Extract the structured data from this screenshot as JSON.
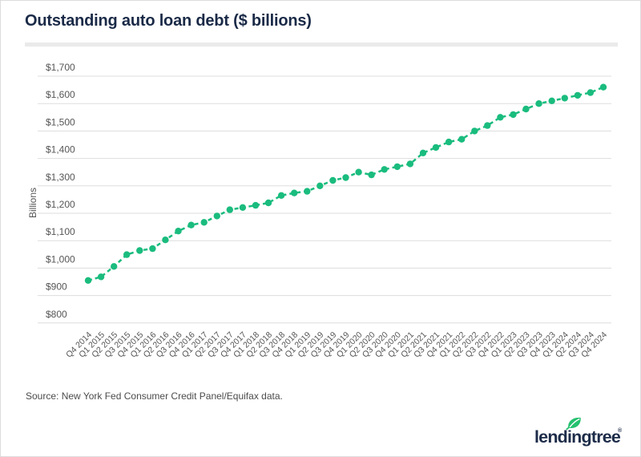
{
  "page": {
    "title": "Outstanding auto loan debt ($ billions)",
    "source": "Source: New York Fed Consumer Credit Panel/Equifax data."
  },
  "logo": {
    "text": "lendingtree",
    "reg": "®",
    "leaf_icon": "leaf-icon"
  },
  "colors": {
    "series_green": "#1abc7e",
    "leaf_green": "#25c06f",
    "brand_navy": "#1d2c49",
    "grid_gray": "#dddddd",
    "axis_text_gray": "#565656"
  },
  "chart_data": {
    "type": "line",
    "title": "Outstanding auto loan debt ($ billions)",
    "xlabel": "",
    "ylabel": "Billions",
    "ylim": [
      800,
      1700
    ],
    "ytick_values": [
      1700,
      1600,
      1500,
      1400,
      1300,
      1200,
      1100,
      1000,
      900,
      800
    ],
    "ytick_labels": [
      "$1,700",
      "$1,600",
      "$1,500",
      "$1,400",
      "$1,300",
      "$1,200",
      "$1,100",
      "$1,000",
      "$900",
      "$800"
    ],
    "grid": "horizontal-only",
    "legend": "none",
    "line_style": "dashed-with-round-markers",
    "categories": [
      "Q4 2014",
      "Q1 2015",
      "Q2 2015",
      "Q3 2015",
      "Q4 2015",
      "Q1 2016",
      "Q2 2016",
      "Q3 2016",
      "Q4 2016",
      "Q1 2017",
      "Q2 2017",
      "Q3 2017",
      "Q4 2017",
      "Q1 2018",
      "Q2 2018",
      "Q3 2018",
      "Q4 2018",
      "Q1 2019",
      "Q2 2019",
      "Q3 2019",
      "Q4 2019",
      "Q1 2020",
      "Q2 2020",
      "Q3 2020",
      "Q4 2020",
      "Q1 2021",
      "Q2 2021",
      "Q3 2021",
      "Q4 2021",
      "Q1 2022",
      "Q2 2022",
      "Q3 2022",
      "Q4 2022",
      "Q1 2023",
      "Q2 2023",
      "Q3 2023",
      "Q4 2023",
      "Q1 2024",
      "Q2 2024",
      "Q3 2024",
      "Q4 2024"
    ],
    "values": [
      955,
      968,
      1006,
      1049,
      1064,
      1071,
      1103,
      1135,
      1157,
      1167,
      1190,
      1213,
      1221,
      1229,
      1238,
      1265,
      1274,
      1280,
      1300,
      1320,
      1330,
      1350,
      1340,
      1360,
      1370,
      1380,
      1420,
      1440,
      1460,
      1470,
      1500,
      1520,
      1550,
      1560,
      1580,
      1600,
      1610,
      1620,
      1630,
      1640,
      1660
    ]
  }
}
